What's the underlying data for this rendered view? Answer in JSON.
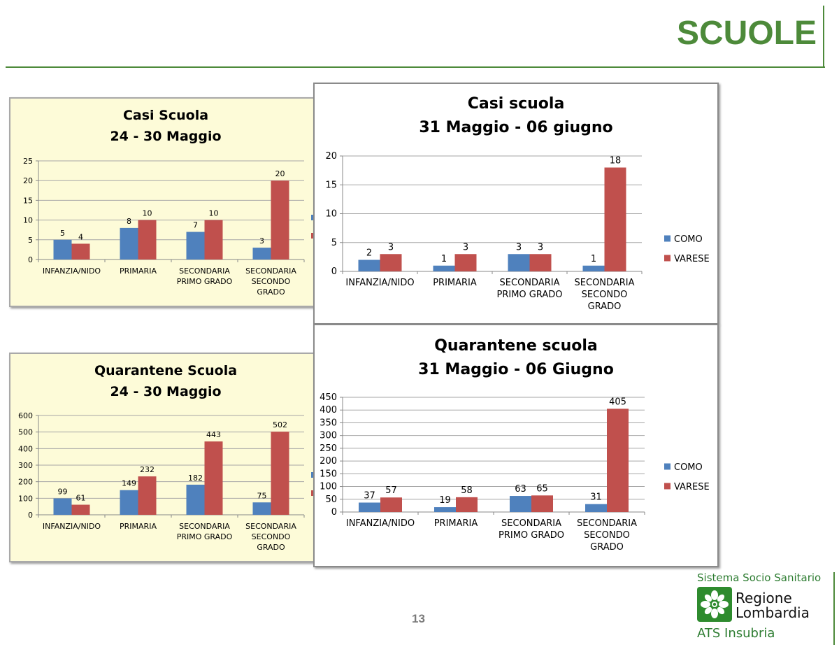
{
  "slide": {
    "title": "SCUOLE",
    "page_number": "13"
  },
  "colors": {
    "accent": "#4d8a3a",
    "como": "#4f81bd",
    "varese": "#c0504d",
    "yellow_panel": "#fdfbd8"
  },
  "logo": {
    "system": "Sistema Socio Sanitario",
    "region_line1": "Regione",
    "region_line2": "Lombardia",
    "agency": "ATS Insubria",
    "icon": "lombardia-rose-icon"
  },
  "chart_data": [
    {
      "type": "bar",
      "title": [
        "Casi Scuola",
        "24 - 30 Maggio"
      ],
      "categories": [
        [
          "INFANZIA/NIDO"
        ],
        [
          "PRIMARIA"
        ],
        [
          "SECONDARIA",
          "PRIMO GRADO"
        ],
        [
          "SECONDARIA",
          "SECONDO",
          "GRADO"
        ]
      ],
      "series": [
        {
          "name": "",
          "color": "#4f81bd",
          "values": [
            5,
            8,
            7,
            3
          ]
        },
        {
          "name": "",
          "color": "#c0504d",
          "values": [
            4,
            10,
            10,
            20
          ]
        }
      ],
      "yticks": [
        "0",
        "5",
        "10",
        "15",
        "20",
        "25"
      ],
      "ylim": [
        0,
        25
      ],
      "grid": true,
      "legend": "right-cropped"
    },
    {
      "type": "bar",
      "title": [
        "Casi scuola",
        "31 Maggio - 06 giugno"
      ],
      "categories": [
        [
          "INFANZIA/NIDO"
        ],
        [
          "PRIMARIA"
        ],
        [
          "SECONDARIA",
          "PRIMO GRADO"
        ],
        [
          "SECONDARIA",
          "SECONDO",
          "GRADO"
        ]
      ],
      "series": [
        {
          "name": "COMO",
          "color": "#4f81bd",
          "values": [
            2,
            1,
            3,
            1
          ]
        },
        {
          "name": "VARESE",
          "color": "#c0504d",
          "values": [
            3,
            3,
            3,
            18
          ]
        }
      ],
      "yticks": [
        "0",
        "5",
        "10",
        "15",
        "20"
      ],
      "ylim": [
        0,
        20
      ],
      "grid": true,
      "legend": "right"
    },
    {
      "type": "bar",
      "title": [
        "Quarantene Scuola",
        "24 - 30 Maggio"
      ],
      "categories": [
        [
          "INFANZIA/NIDO"
        ],
        [
          "PRIMARIA"
        ],
        [
          "SECONDARIA",
          "PRIMO GRADO"
        ],
        [
          "SECONDARIA",
          "SECONDO",
          "GRADO"
        ]
      ],
      "series": [
        {
          "name": "",
          "color": "#4f81bd",
          "values": [
            99,
            149,
            182,
            75
          ]
        },
        {
          "name": "",
          "color": "#c0504d",
          "values": [
            61,
            232,
            443,
            502
          ]
        }
      ],
      "yticks": [
        "0",
        "100",
        "200",
        "300",
        "400",
        "500",
        "600"
      ],
      "ylim": [
        0,
        600
      ],
      "grid": true,
      "legend": "right-cropped"
    },
    {
      "type": "bar",
      "title": [
        "Quarantene scuola",
        "31 Maggio - 06 Giugno"
      ],
      "categories": [
        [
          "INFANZIA/NIDO"
        ],
        [
          "PRIMARIA"
        ],
        [
          "SECONDARIA",
          "PRIMO GRADO"
        ],
        [
          "SECONDARIA",
          "SECONDO",
          "GRADO"
        ]
      ],
      "series": [
        {
          "name": "COMO",
          "color": "#4f81bd",
          "values": [
            37,
            19,
            63,
            31
          ]
        },
        {
          "name": "VARESE",
          "color": "#c0504d",
          "values": [
            57,
            58,
            65,
            405
          ]
        }
      ],
      "yticks": [
        "0",
        "50",
        "100",
        "150",
        "200",
        "250",
        "300",
        "350",
        "400",
        "450"
      ],
      "ylim": [
        0,
        450
      ],
      "grid": true,
      "legend": "right"
    }
  ]
}
